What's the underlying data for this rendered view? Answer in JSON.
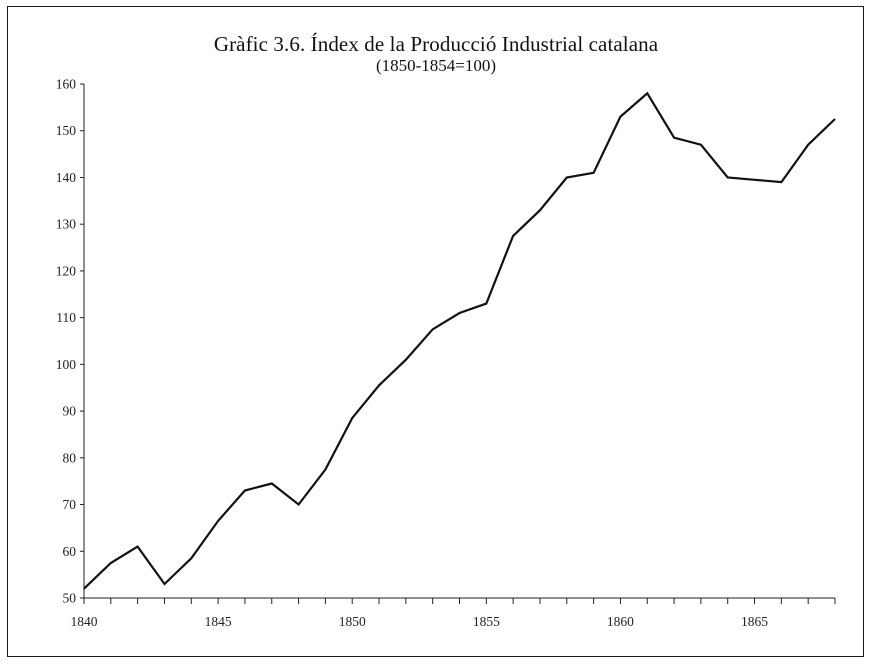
{
  "chart_data": {
    "type": "line",
    "title": "Gràfic 3.6. Índex de la Producció Industrial catalana",
    "subtitle": "(1850-1854=100)",
    "xlabel": "",
    "ylabel": "",
    "xlim": [
      1840,
      1868
    ],
    "ylim": [
      50,
      160
    ],
    "x_ticks": [
      1840,
      1845,
      1850,
      1855,
      1860,
      1865
    ],
    "y_ticks": [
      50,
      60,
      70,
      80,
      90,
      100,
      110,
      120,
      130,
      140,
      150,
      160
    ],
    "grid": false,
    "line_color": "#111111",
    "series": [
      {
        "x": [
          1840,
          1841,
          1842,
          1843,
          1844,
          1845,
          1846,
          1847,
          1848,
          1849,
          1850,
          1851,
          1852,
          1853,
          1854,
          1855,
          1856,
          1857,
          1858,
          1859,
          1860,
          1861,
          1862,
          1863,
          1864,
          1865,
          1866,
          1867,
          1868
        ],
        "values": [
          52,
          57.5,
          61,
          53,
          58.5,
          66.5,
          73,
          74.5,
          70,
          77.5,
          88.5,
          95.5,
          101,
          107.5,
          111,
          113,
          127.5,
          133,
          140,
          141,
          153,
          158,
          148.5,
          147,
          140,
          139.5,
          139,
          147,
          152.5
        ]
      }
    ]
  }
}
